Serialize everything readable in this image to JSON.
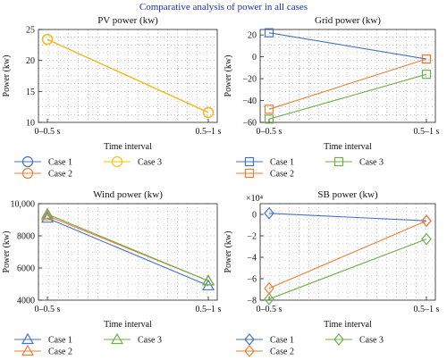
{
  "figure_title": "Comparative analysis of power in all cases",
  "colors": {
    "case1": "#4472c4",
    "case2": "#ed7d31",
    "case3": "#70ad47",
    "case3_pv": "#ffc000",
    "title": "#1f2fa8"
  },
  "chart_data": [
    {
      "type": "line",
      "title": "PV power (kw)",
      "xlabel": "Time interval",
      "ylabel": "Power (kw)",
      "categories": [
        "0–0.5 s",
        "0.5–1 s"
      ],
      "ylim": [
        10,
        25
      ],
      "yticks": [
        "10",
        "15",
        "20",
        "25"
      ],
      "exponent": "",
      "marker": "circle",
      "grid": true,
      "legend": "below",
      "series": [
        {
          "name": "Case 1",
          "values": [
            23.4,
            11.6
          ],
          "color": "#4472c4"
        },
        {
          "name": "Case 2",
          "values": [
            23.4,
            11.6
          ],
          "color": "#ed7d31"
        },
        {
          "name": "Case 3",
          "values": [
            23.4,
            11.6
          ],
          "color": "#ffc000"
        }
      ]
    },
    {
      "type": "line",
      "title": "Grid power (kw)",
      "xlabel": "Time interval",
      "ylabel": "Power (kw)",
      "categories": [
        "0–0.5 s",
        "0.5–1 s"
      ],
      "ylim": [
        -60,
        25
      ],
      "yticks": [
        "−60",
        "−40",
        "−20",
        "0",
        "20"
      ],
      "exponent": "",
      "marker": "square",
      "grid": true,
      "legend": "below",
      "series": [
        {
          "name": "Case 1",
          "values": [
            22,
            -2
          ],
          "color": "#4472c4"
        },
        {
          "name": "Case 2",
          "values": [
            -48,
            -2
          ],
          "color": "#ed7d31"
        },
        {
          "name": "Case 3",
          "values": [
            -57,
            -16
          ],
          "color": "#70ad47"
        }
      ]
    },
    {
      "type": "line",
      "title": "Wind power (kw)",
      "xlabel": "Time interval",
      "ylabel": "Power (kw)",
      "categories": [
        "0–0.5 s",
        "0.5–1 s"
      ],
      "ylim": [
        4000,
        10000
      ],
      "yticks": [
        "4000",
        "6000",
        "8000",
        "10,000"
      ],
      "exponent": "",
      "marker": "triangle",
      "grid": true,
      "legend": "below",
      "series": [
        {
          "name": "Case 1",
          "values": [
            9100,
            4900
          ],
          "color": "#4472c4"
        },
        {
          "name": "Case 2",
          "values": [
            9250,
            5200
          ],
          "color": "#ed7d31"
        },
        {
          "name": "Case 3",
          "values": [
            9350,
            5200
          ],
          "color": "#70ad47"
        }
      ]
    },
    {
      "type": "line",
      "title": "SB power (kw)",
      "xlabel": "Time interval",
      "ylabel": "Power (kw)",
      "categories": [
        "0–0.5 s",
        "0.5–1 s"
      ],
      "ylim": [
        -8,
        1
      ],
      "yticks": [
        "−8",
        "−6",
        "−4",
        "−2",
        "0"
      ],
      "exponent": "×10⁴",
      "marker": "diamond",
      "grid": true,
      "legend": "below",
      "series": [
        {
          "name": "Case 1",
          "values": [
            0.1,
            -0.6
          ],
          "color": "#4472c4"
        },
        {
          "name": "Case 2",
          "values": [
            -6.9,
            -0.6
          ],
          "color": "#ed7d31"
        },
        {
          "name": "Case 3",
          "values": [
            -7.9,
            -2.3
          ],
          "color": "#70ad47"
        }
      ]
    }
  ]
}
